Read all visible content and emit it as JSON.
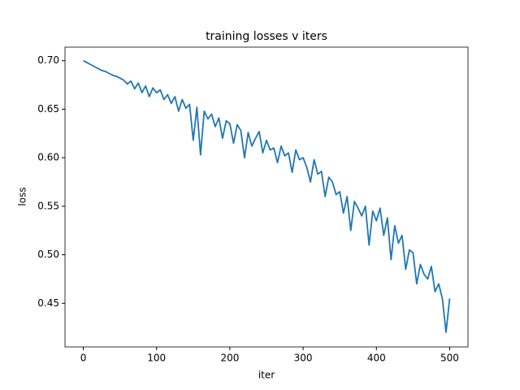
{
  "chart_data": {
    "type": "line",
    "title": "training losses v iters",
    "xlabel": "iter",
    "ylabel": "loss",
    "x": [
      0,
      5,
      10,
      15,
      20,
      25,
      30,
      35,
      40,
      45,
      50,
      55,
      60,
      65,
      70,
      75,
      80,
      85,
      90,
      95,
      100,
      105,
      110,
      115,
      120,
      125,
      130,
      135,
      140,
      145,
      150,
      155,
      160,
      165,
      170,
      175,
      180,
      185,
      190,
      195,
      200,
      205,
      210,
      215,
      220,
      225,
      230,
      235,
      240,
      245,
      250,
      255,
      260,
      265,
      270,
      275,
      280,
      285,
      290,
      295,
      300,
      305,
      310,
      315,
      320,
      325,
      330,
      335,
      340,
      345,
      350,
      355,
      360,
      365,
      370,
      375,
      380,
      385,
      390,
      395,
      400,
      405,
      410,
      415,
      420,
      425,
      430,
      435,
      440,
      445,
      450,
      455,
      460,
      465,
      470,
      475,
      480,
      485,
      490,
      495,
      500
    ],
    "series": [
      {
        "name": "loss",
        "color": "#1f77b4",
        "values": [
          0.7,
          0.698,
          0.696,
          0.694,
          0.692,
          0.69,
          0.689,
          0.687,
          0.685,
          0.684,
          0.682,
          0.68,
          0.676,
          0.679,
          0.671,
          0.677,
          0.667,
          0.674,
          0.663,
          0.672,
          0.667,
          0.67,
          0.66,
          0.665,
          0.656,
          0.663,
          0.648,
          0.66,
          0.651,
          0.655,
          0.618,
          0.652,
          0.603,
          0.648,
          0.64,
          0.645,
          0.632,
          0.641,
          0.62,
          0.638,
          0.635,
          0.615,
          0.634,
          0.628,
          0.6,
          0.626,
          0.612,
          0.62,
          0.627,
          0.605,
          0.618,
          0.608,
          0.61,
          0.595,
          0.612,
          0.602,
          0.605,
          0.585,
          0.608,
          0.598,
          0.6,
          0.59,
          0.575,
          0.598,
          0.583,
          0.586,
          0.56,
          0.58,
          0.575,
          0.562,
          0.565,
          0.543,
          0.56,
          0.525,
          0.555,
          0.548,
          0.54,
          0.55,
          0.51,
          0.545,
          0.535,
          0.548,
          0.52,
          0.538,
          0.495,
          0.53,
          0.512,
          0.52,
          0.485,
          0.505,
          0.502,
          0.47,
          0.49,
          0.48,
          0.475,
          0.488,
          0.462,
          0.47,
          0.455,
          0.42,
          0.455
        ]
      }
    ],
    "xlim": [
      -25,
      525
    ],
    "xticks": [
      0,
      100,
      200,
      300,
      400,
      500
    ],
    "ylim": [
      0.405,
      0.714
    ],
    "yticks": [
      0.45,
      {
        "value": 0.5,
        "label": "0.50"
      },
      0.55,
      {
        "value": 0.6,
        "label": "0.60"
      },
      0.65,
      {
        "value": 0.7,
        "label": "0.70"
      }
    ]
  }
}
